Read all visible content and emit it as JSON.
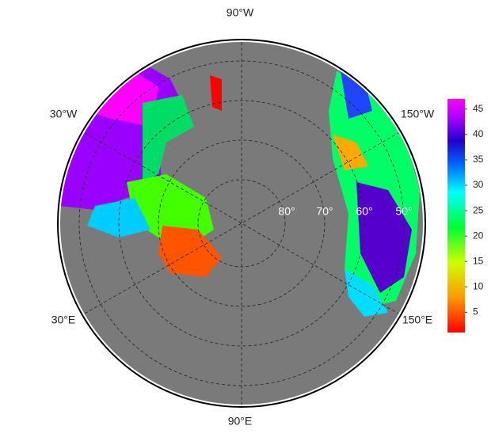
{
  "map": {
    "longitude_labels": [
      "90°W",
      "30°W",
      "150°W",
      "30°E",
      "150°E",
      "90°E"
    ],
    "latitude_labels": [
      "80°",
      "70°",
      "60°",
      "50°"
    ]
  },
  "colorbar": {
    "lim": [
      1,
      47
    ],
    "ticks": [
      5,
      10,
      15,
      20,
      25,
      30,
      35,
      40,
      45
    ]
  }
}
